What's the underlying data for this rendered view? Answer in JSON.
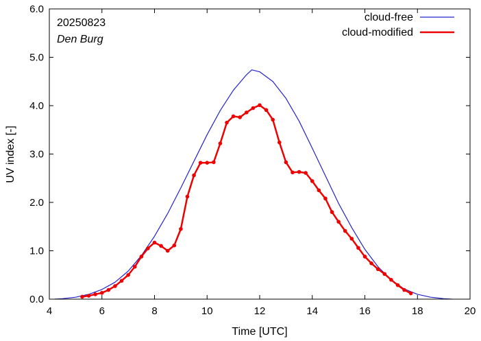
{
  "chart_data": {
    "type": "line",
    "date": "20250823",
    "location": "Den Burg",
    "xlabel": "Time  [UTC]",
    "ylabel": "UV index  [-]",
    "xlim": [
      4,
      20
    ],
    "ylim": [
      0,
      6
    ],
    "x_ticks": [
      4,
      6,
      8,
      10,
      12,
      14,
      16,
      18,
      20
    ],
    "x_tick_labels": [
      "4",
      "6",
      "8",
      "10",
      "12",
      "14",
      "16",
      "18",
      "20"
    ],
    "y_ticks": [
      0,
      1,
      2,
      3,
      4,
      5,
      6
    ],
    "y_tick_labels": [
      "0.0",
      "1.0",
      "2.0",
      "3.0",
      "4.0",
      "5.0",
      "6.0"
    ],
    "legend_position": "top-right",
    "colors": {
      "cloud_free": "#2222cc",
      "cloud_modified": "#ee0000"
    },
    "series": [
      {
        "name": "cloud-free",
        "style": "line",
        "x": [
          4.2,
          4.5,
          5.0,
          5.5,
          6.0,
          6.5,
          7.0,
          7.5,
          8.0,
          8.5,
          9.0,
          9.5,
          10.0,
          10.5,
          11.0,
          11.5,
          11.7,
          12.0,
          12.5,
          13.0,
          13.5,
          14.0,
          14.5,
          15.0,
          15.5,
          16.0,
          16.5,
          17.0,
          17.5,
          18.0,
          18.5,
          19.0,
          19.3
        ],
        "y": [
          0.0,
          0.01,
          0.04,
          0.1,
          0.2,
          0.35,
          0.58,
          0.9,
          1.3,
          1.77,
          2.3,
          2.85,
          3.4,
          3.9,
          4.32,
          4.64,
          4.74,
          4.7,
          4.5,
          4.15,
          3.68,
          3.12,
          2.55,
          1.98,
          1.48,
          1.03,
          0.67,
          0.4,
          0.21,
          0.1,
          0.04,
          0.01,
          0.0
        ]
      },
      {
        "name": "cloud-modified",
        "style": "line+points",
        "x": [
          5.25,
          5.5,
          5.75,
          6.0,
          6.25,
          6.5,
          6.75,
          7.0,
          7.25,
          7.5,
          7.75,
          8.0,
          8.25,
          8.5,
          8.75,
          9.0,
          9.25,
          9.5,
          9.75,
          10.0,
          10.25,
          10.5,
          10.75,
          11.0,
          11.25,
          11.5,
          11.75,
          12.0,
          12.25,
          12.5,
          12.75,
          13.0,
          13.25,
          13.5,
          13.75,
          14.0,
          14.25,
          14.5,
          14.75,
          15.0,
          15.25,
          15.5,
          15.75,
          16.0,
          16.25,
          16.5,
          16.75,
          17.0,
          17.25,
          17.5,
          17.75
        ],
        "y": [
          0.05,
          0.07,
          0.1,
          0.13,
          0.19,
          0.27,
          0.38,
          0.5,
          0.67,
          0.88,
          1.05,
          1.17,
          1.1,
          1.0,
          1.11,
          1.45,
          2.12,
          2.56,
          2.82,
          2.82,
          2.83,
          3.22,
          3.65,
          3.78,
          3.76,
          3.86,
          3.95,
          4.01,
          3.91,
          3.71,
          3.24,
          2.83,
          2.62,
          2.63,
          2.61,
          2.44,
          2.25,
          2.08,
          1.8,
          1.6,
          1.41,
          1.25,
          1.06,
          0.88,
          0.74,
          0.62,
          0.52,
          0.4,
          0.29,
          0.19,
          0.12
        ]
      }
    ]
  }
}
